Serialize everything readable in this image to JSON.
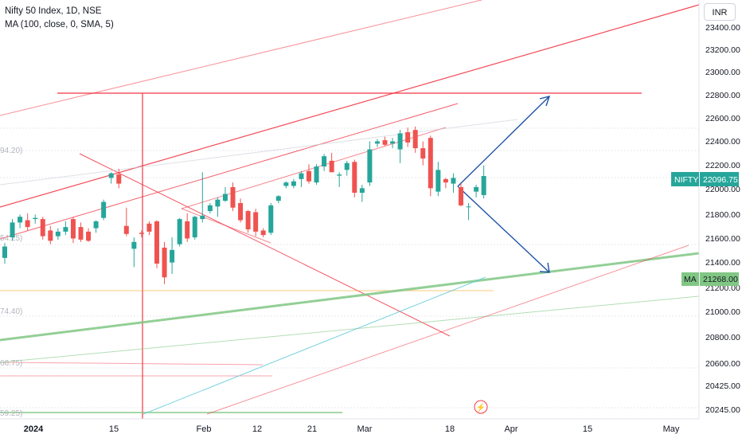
{
  "header": {
    "symbol_line": "Nifty 50 Index, 1D, NSE",
    "indicator_line": "MA (100, close, 0, SMA, 5)"
  },
  "currency_label": "INR",
  "colors": {
    "up": "#26a69a",
    "down": "#ef5350",
    "trendline": "#f23645",
    "ma": "#81c784",
    "projection": "#1e53a6",
    "badge": "#26a69a"
  },
  "chart_data": {
    "type": "candlestick",
    "y_ticks": [
      "23400.00",
      "23200.00",
      "23000.00",
      "22800.00",
      "22600.00",
      "22400.00",
      "22200.00",
      "22000.00",
      "21800.00",
      "21600.00",
      "21400.00",
      "21200.00",
      "21000.00",
      "20800.00",
      "20600.00",
      "20425.00",
      "20245.00"
    ],
    "x_ticks": [
      "2024",
      "15",
      "Feb",
      "12",
      "21",
      "Mar",
      "18",
      "Apr",
      "15",
      "May"
    ],
    "left_edge_labels": [
      "94.20)",
      "54.25)",
      "74.40)",
      "66.75)",
      "59.25)"
    ],
    "price_badge": {
      "label": "NIFTY",
      "value": "22096.75"
    },
    "ma_badge": {
      "label": "MA",
      "value": "21268.00"
    },
    "candles": [
      {
        "o": 21380,
        "h": 21510,
        "l": 21330,
        "c": 21480
      },
      {
        "o": 21560,
        "h": 21720,
        "l": 21530,
        "c": 21690
      },
      {
        "o": 21690,
        "h": 21760,
        "l": 21640,
        "c": 21740
      },
      {
        "o": 21710,
        "h": 21770,
        "l": 21620,
        "c": 21650
      },
      {
        "o": 21720,
        "h": 21760,
        "l": 21680,
        "c": 21730
      },
      {
        "o": 21720,
        "h": 21740,
        "l": 21540,
        "c": 21570
      },
      {
        "o": 21620,
        "h": 21660,
        "l": 21500,
        "c": 21530
      },
      {
        "o": 21570,
        "h": 21640,
        "l": 21540,
        "c": 21610
      },
      {
        "o": 21610,
        "h": 21700,
        "l": 21580,
        "c": 21650
      },
      {
        "o": 21720,
        "h": 21740,
        "l": 21510,
        "c": 21550
      },
      {
        "o": 21650,
        "h": 21690,
        "l": 21520,
        "c": 21540
      },
      {
        "o": 21610,
        "h": 21640,
        "l": 21520,
        "c": 21530
      },
      {
        "o": 21640,
        "h": 21710,
        "l": 21600,
        "c": 21700
      },
      {
        "o": 21730,
        "h": 21890,
        "l": 21710,
        "c": 21870
      },
      {
        "o": 22080,
        "h": 22130,
        "l": 22030,
        "c": 22120
      },
      {
        "o": 22110,
        "h": 22160,
        "l": 21990,
        "c": 22030
      },
      {
        "o": 21660,
        "h": 21820,
        "l": 21570,
        "c": 21590
      },
      {
        "o": 21460,
        "h": 21560,
        "l": 21300,
        "c": 21520
      },
      {
        "o": 21600,
        "h": 21620,
        "l": 21560,
        "c": 21590
      },
      {
        "o": 21680,
        "h": 21700,
        "l": 21580,
        "c": 21610
      },
      {
        "o": 21700,
        "h": 21710,
        "l": 21290,
        "c": 21330
      },
      {
        "o": 21470,
        "h": 21520,
        "l": 21150,
        "c": 21210
      },
      {
        "o": 21340,
        "h": 21560,
        "l": 21240,
        "c": 21450
      },
      {
        "o": 21500,
        "h": 21730,
        "l": 21480,
        "c": 21720
      },
      {
        "o": 21700,
        "h": 21770,
        "l": 21520,
        "c": 21550
      },
      {
        "o": 21560,
        "h": 21750,
        "l": 21540,
        "c": 21740
      },
      {
        "o": 21720,
        "h": 22130,
        "l": 21690,
        "c": 21750
      },
      {
        "o": 21790,
        "h": 21860,
        "l": 21770,
        "c": 21840
      },
      {
        "o": 21830,
        "h": 21910,
        "l": 21740,
        "c": 21890
      },
      {
        "o": 21880,
        "h": 22000,
        "l": 21870,
        "c": 21940
      },
      {
        "o": 22000,
        "h": 22040,
        "l": 21790,
        "c": 21820
      },
      {
        "o": 21860,
        "h": 21900,
        "l": 21690,
        "c": 21710
      },
      {
        "o": 21790,
        "h": 21800,
        "l": 21600,
        "c": 21630
      },
      {
        "o": 21780,
        "h": 21810,
        "l": 21570,
        "c": 21610
      },
      {
        "o": 21620,
        "h": 21640,
        "l": 21560,
        "c": 21580
      },
      {
        "o": 21600,
        "h": 21860,
        "l": 21580,
        "c": 21840
      },
      {
        "o": 21880,
        "h": 21930,
        "l": 21860,
        "c": 21920
      },
      {
        "o": 22010,
        "h": 22050,
        "l": 21990,
        "c": 22040
      },
      {
        "o": 22010,
        "h": 22070,
        "l": 21990,
        "c": 22050
      },
      {
        "o": 22070,
        "h": 22140,
        "l": 22000,
        "c": 22120
      },
      {
        "o": 22140,
        "h": 22200,
        "l": 22030,
        "c": 22050
      },
      {
        "o": 22040,
        "h": 22200,
        "l": 22020,
        "c": 22180
      },
      {
        "o": 22180,
        "h": 22290,
        "l": 22140,
        "c": 22270
      },
      {
        "o": 22230,
        "h": 22300,
        "l": 22130,
        "c": 22130
      },
      {
        "o": 22100,
        "h": 22130,
        "l": 22000,
        "c": 22110
      },
      {
        "o": 22150,
        "h": 22230,
        "l": 22100,
        "c": 22210
      },
      {
        "o": 22220,
        "h": 22240,
        "l": 21910,
        "c": 21950
      },
      {
        "o": 21950,
        "h": 22020,
        "l": 21870,
        "c": 21990
      },
      {
        "o": 22040,
        "h": 22400,
        "l": 22010,
        "c": 22330
      },
      {
        "o": 22380,
        "h": 22420,
        "l": 22350,
        "c": 22400
      },
      {
        "o": 22410,
        "h": 22440,
        "l": 22360,
        "c": 22370
      },
      {
        "o": 22380,
        "h": 22430,
        "l": 22340,
        "c": 22400
      },
      {
        "o": 22330,
        "h": 22500,
        "l": 22210,
        "c": 22470
      },
      {
        "o": 22480,
        "h": 22520,
        "l": 22350,
        "c": 22390
      },
      {
        "o": 22500,
        "h": 22530,
        "l": 22300,
        "c": 22340
      },
      {
        "o": 22340,
        "h": 22400,
        "l": 22190,
        "c": 22250
      },
      {
        "o": 22430,
        "h": 22450,
        "l": 21920,
        "c": 21990
      },
      {
        "o": 21960,
        "h": 22220,
        "l": 21920,
        "c": 22150
      },
      {
        "o": 22070,
        "h": 22080,
        "l": 21990,
        "c": 22040
      },
      {
        "o": 22030,
        "h": 22120,
        "l": 21950,
        "c": 22080
      },
      {
        "o": 22000,
        "h": 22030,
        "l": 21830,
        "c": 21840
      },
      {
        "o": 21830,
        "h": 21860,
        "l": 21710,
        "c": 21830
      },
      {
        "o": 21960,
        "h": 22020,
        "l": 21910,
        "c": 22000
      },
      {
        "o": 21930,
        "h": 22190,
        "l": 21900,
        "c": 22096.75
      }
    ]
  }
}
